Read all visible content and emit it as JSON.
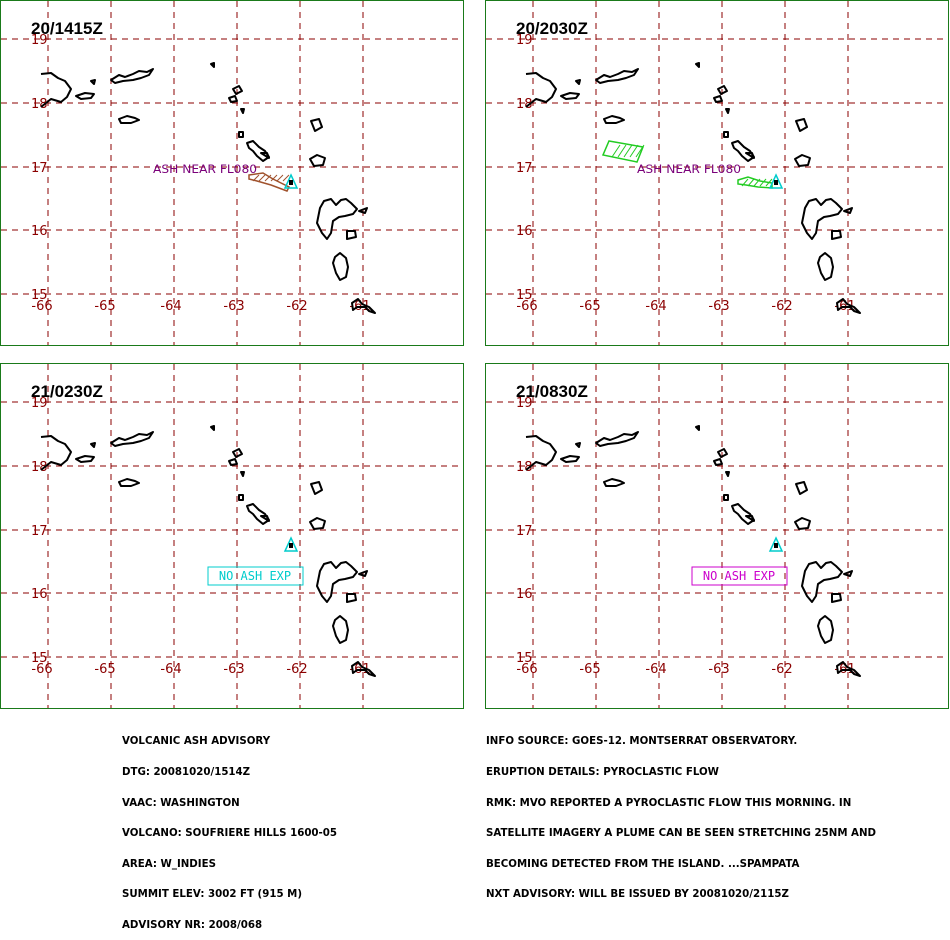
{
  "panels": [
    {
      "time": "20/1415Z",
      "plume": "brown",
      "label": "ASH NEAR FL080",
      "label_color": "#7a007a",
      "box": null
    },
    {
      "time": "20/2030Z",
      "plume": "green",
      "label": "ASH NEAR FL080",
      "label_color": "#7a007a",
      "box": null
    },
    {
      "time": "21/0230Z",
      "plume": null,
      "label": null,
      "box": {
        "text": "NO ASH EXP",
        "color": "#00cccc"
      }
    },
    {
      "time": "21/0830Z",
      "plume": null,
      "label": null,
      "box": {
        "text": "NO ASH EXP",
        "color": "#cc00cc"
      }
    }
  ],
  "axes": {
    "lon_labels": [
      "-66",
      "-65",
      "-64",
      "-63",
      "-62",
      "-61"
    ],
    "lat_labels": [
      "19",
      "18",
      "17",
      "16",
      "15"
    ],
    "grid_color": "#8b0000",
    "label_color": "#8b0000"
  },
  "colors": {
    "volcano": "#00cccc",
    "land": "#000000",
    "panel_border": "#1a7a1a"
  },
  "advisory_left": [
    "VOLCANIC ASH ADVISORY",
    "DTG: 20081020/1514Z",
    "VAAC: WASHINGTON",
    "VOLCANO: SOUFRIERE HILLS 1600-05",
    "AREA: W_INDIES",
    "SUMMIT ELEV: 3002 FT (915 M)",
    "ADVISORY NR: 2008/068"
  ],
  "advisory_right": [
    "INFO SOURCE: GOES-12. MONTSERRAT OBSERVATORY.",
    "ERUPTION DETAILS: PYROCLASTIC FLOW",
    "RMK: MVO REPORTED A PYROCLASTIC FLOW THIS MORNING. IN",
    "SATELLITE IMAGERY A PLUME CAN BE SEEN STRETCHING 25NM AND",
    "BECOMING DETECTED FROM THE ISLAND. ...SPAMPATA",
    "NXT ADVISORY: WILL BE ISSUED BY 20081020/2115Z"
  ]
}
